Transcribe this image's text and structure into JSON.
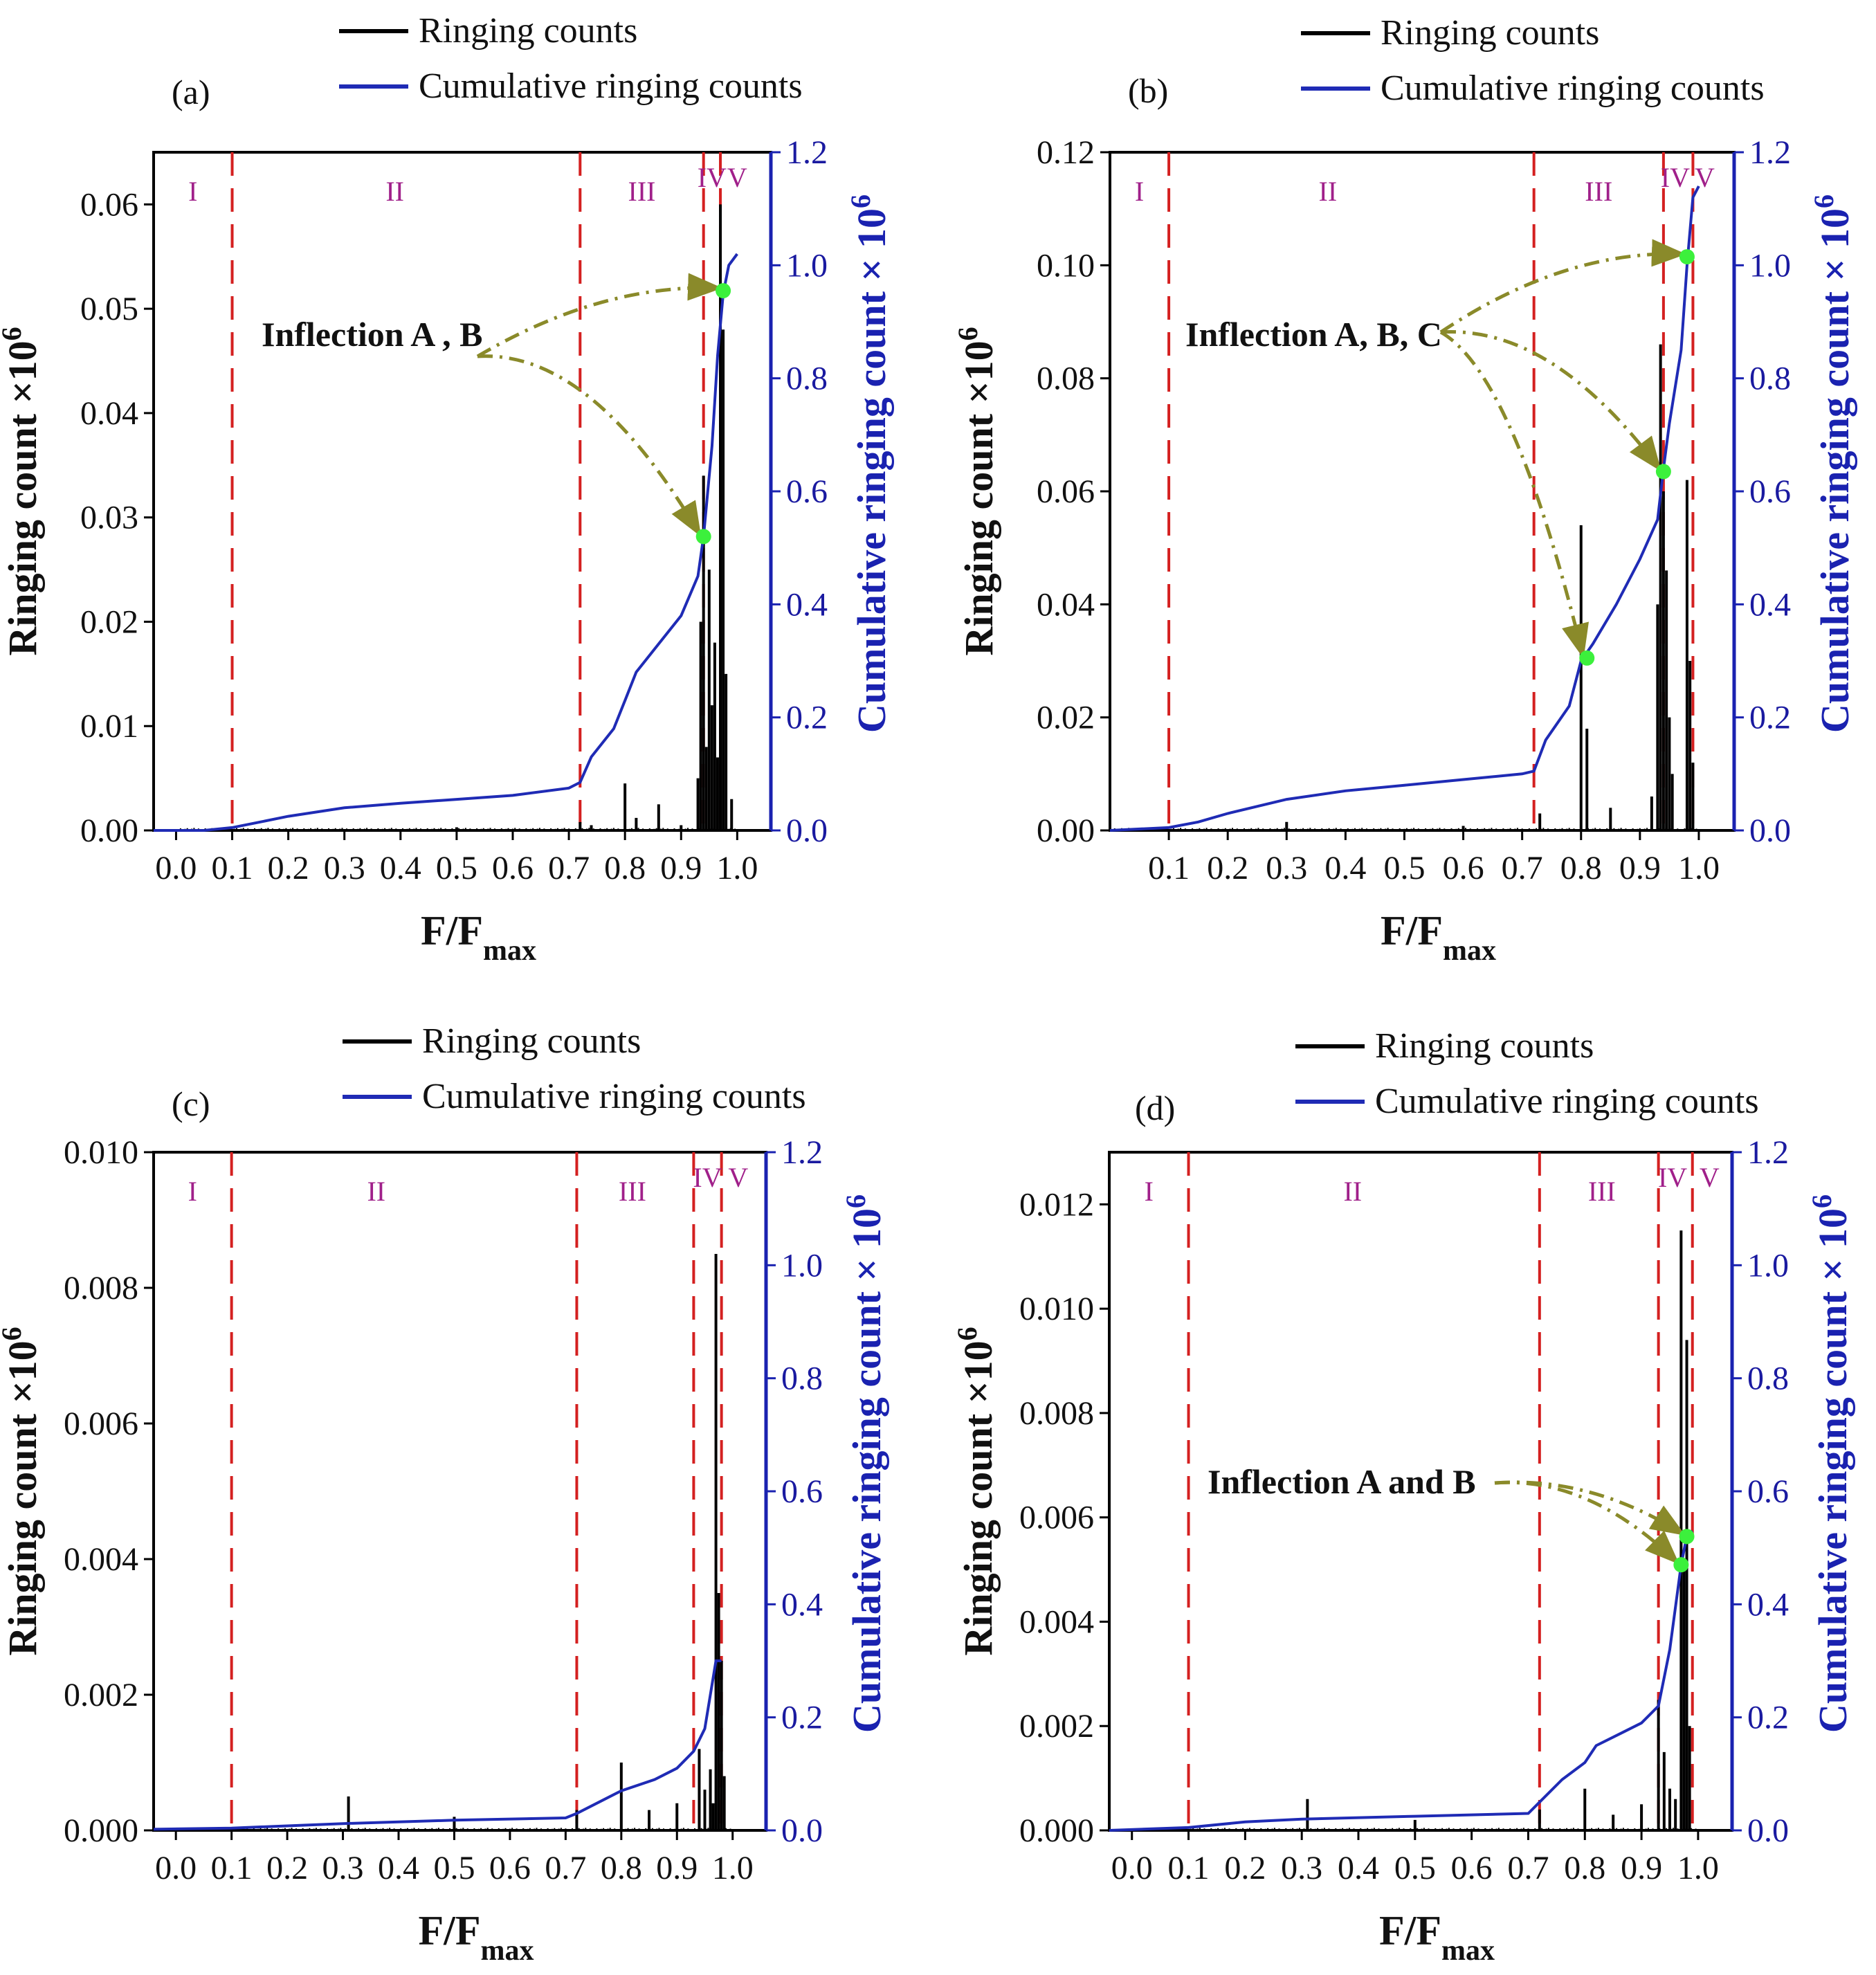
{
  "figure": {
    "legend": {
      "ringing": "Ringing counts",
      "cumulative": "Cumulative ringing counts"
    },
    "xlabel_main": "F/F",
    "xlabel_sub": "max",
    "ylabel_left": "Ringing count ×10",
    "ylabel_left_exp": "6",
    "ylabel_right": "Cumulative ringing count × 10",
    "ylabel_right_exp": "6",
    "colors": {
      "ringing": "#000000",
      "cumulative": "#1f2bb5",
      "divider": "#d42020",
      "region": "#a0208a",
      "arrow": "#8a8a2a",
      "point": "#3cf03c"
    }
  },
  "chart_data": [
    {
      "panel": "(a)",
      "type": "line",
      "x_range": [
        -0.04,
        1.06
      ],
      "x_ticks": [
        "0.0",
        "0.1",
        "0.2",
        "0.3",
        "0.4",
        "0.5",
        "0.6",
        "0.7",
        "0.8",
        "0.9",
        "1.0"
      ],
      "y_left_range": [
        0,
        0.065
      ],
      "y_left_ticks": [
        "0.00",
        "0.01",
        "0.02",
        "0.03",
        "0.04",
        "0.05",
        "0.06"
      ],
      "y_right_range": [
        0,
        1.2
      ],
      "y_right_ticks": [
        "0.0",
        "0.2",
        "0.4",
        "0.6",
        "0.8",
        "1.0",
        "1.2"
      ],
      "region_boundaries": [
        0.1,
        0.72,
        0.94,
        0.97
      ],
      "regions": [
        {
          "label": "I",
          "x": 0.03
        },
        {
          "label": "II",
          "x": 0.39
        },
        {
          "label": "III",
          "x": 0.83
        },
        {
          "label": "IV",
          "x": 0.955
        },
        {
          "label": "V",
          "x": 1.0
        }
      ],
      "ringing_counts": [
        [
          0.5,
          0.0003
        ],
        [
          0.72,
          0.0008
        ],
        [
          0.74,
          0.0005
        ],
        [
          0.8,
          0.0045
        ],
        [
          0.82,
          0.0012
        ],
        [
          0.86,
          0.0025
        ],
        [
          0.9,
          0.0005
        ],
        [
          0.93,
          0.005
        ],
        [
          0.935,
          0.02
        ],
        [
          0.94,
          0.034
        ],
        [
          0.945,
          0.008
        ],
        [
          0.95,
          0.025
        ],
        [
          0.955,
          0.012
        ],
        [
          0.96,
          0.018
        ],
        [
          0.965,
          0.007
        ],
        [
          0.97,
          0.06
        ],
        [
          0.975,
          0.048
        ],
        [
          0.98,
          0.015
        ],
        [
          0.99,
          0.003
        ]
      ],
      "cumulative": [
        [
          -0.04,
          0
        ],
        [
          0.05,
          0
        ],
        [
          0.1,
          0.005
        ],
        [
          0.15,
          0.015
        ],
        [
          0.2,
          0.025
        ],
        [
          0.3,
          0.04
        ],
        [
          0.4,
          0.048
        ],
        [
          0.5,
          0.055
        ],
        [
          0.6,
          0.062
        ],
        [
          0.7,
          0.075
        ],
        [
          0.72,
          0.085
        ],
        [
          0.74,
          0.13
        ],
        [
          0.78,
          0.18
        ],
        [
          0.8,
          0.23
        ],
        [
          0.82,
          0.28
        ],
        [
          0.86,
          0.33
        ],
        [
          0.9,
          0.38
        ],
        [
          0.93,
          0.45
        ],
        [
          0.94,
          0.52
        ],
        [
          0.955,
          0.68
        ],
        [
          0.965,
          0.84
        ],
        [
          0.975,
          0.95
        ],
        [
          0.985,
          1.0
        ],
        [
          1.0,
          1.02
        ]
      ],
      "inflection_label": "Inflection A , B",
      "inflection_points": [
        [
          0.94,
          0.52
        ],
        [
          0.975,
          0.955
        ]
      ]
    },
    {
      "panel": "(b)",
      "type": "line",
      "x_range": [
        0.0,
        1.06
      ],
      "x_ticks": [
        "0.1",
        "0.2",
        "0.3",
        "0.4",
        "0.5",
        "0.6",
        "0.7",
        "0.8",
        "0.9",
        "1.0"
      ],
      "y_left_range": [
        0,
        0.12
      ],
      "y_left_ticks": [
        "0.00",
        "0.02",
        "0.04",
        "0.06",
        "0.08",
        "0.10",
        "0.12"
      ],
      "y_right_range": [
        0,
        1.2
      ],
      "y_right_ticks": [
        "0.0",
        "0.2",
        "0.4",
        "0.6",
        "0.8",
        "1.0",
        "1.2"
      ],
      "region_boundaries": [
        0.1,
        0.72,
        0.94,
        0.99
      ],
      "regions": [
        {
          "label": "I",
          "x": 0.05
        },
        {
          "label": "II",
          "x": 0.37
        },
        {
          "label": "III",
          "x": 0.83
        },
        {
          "label": "IV",
          "x": 0.96
        },
        {
          "label": "V",
          "x": 1.01
        }
      ],
      "ringing_counts": [
        [
          0.3,
          0.0015
        ],
        [
          0.6,
          0.0008
        ],
        [
          0.73,
          0.003
        ],
        [
          0.8,
          0.054
        ],
        [
          0.81,
          0.018
        ],
        [
          0.85,
          0.004
        ],
        [
          0.92,
          0.006
        ],
        [
          0.93,
          0.04
        ],
        [
          0.935,
          0.086
        ],
        [
          0.94,
          0.06
        ],
        [
          0.945,
          0.046
        ],
        [
          0.95,
          0.02
        ],
        [
          0.955,
          0.01
        ],
        [
          0.98,
          0.062
        ],
        [
          0.985,
          0.03
        ],
        [
          0.99,
          0.012
        ]
      ],
      "cumulative": [
        [
          0.0,
          0
        ],
        [
          0.1,
          0.005
        ],
        [
          0.15,
          0.015
        ],
        [
          0.2,
          0.03
        ],
        [
          0.3,
          0.055
        ],
        [
          0.4,
          0.07
        ],
        [
          0.5,
          0.08
        ],
        [
          0.6,
          0.09
        ],
        [
          0.7,
          0.1
        ],
        [
          0.72,
          0.105
        ],
        [
          0.74,
          0.16
        ],
        [
          0.78,
          0.22
        ],
        [
          0.8,
          0.3
        ],
        [
          0.82,
          0.33
        ],
        [
          0.86,
          0.4
        ],
        [
          0.9,
          0.48
        ],
        [
          0.93,
          0.55
        ],
        [
          0.94,
          0.64
        ],
        [
          0.95,
          0.72
        ],
        [
          0.97,
          0.85
        ],
        [
          0.98,
          1.0
        ],
        [
          0.99,
          1.12
        ],
        [
          1.0,
          1.14
        ]
      ],
      "inflection_label": "Inflection A, B, C",
      "inflection_points": [
        [
          0.81,
          0.305
        ],
        [
          0.94,
          0.635
        ],
        [
          0.98,
          1.015
        ]
      ]
    },
    {
      "panel": "(c)",
      "type": "line",
      "x_range": [
        -0.04,
        1.06
      ],
      "x_ticks": [
        "0.0",
        "0.1",
        "0.2",
        "0.3",
        "0.4",
        "0.5",
        "0.6",
        "0.7",
        "0.8",
        "0.9",
        "1.0"
      ],
      "y_left_range": [
        0,
        0.01
      ],
      "y_left_ticks": [
        "0.000",
        "0.002",
        "0.004",
        "0.006",
        "0.008",
        "0.010"
      ],
      "y_right_range": [
        0,
        1.2
      ],
      "y_right_ticks": [
        "0.0",
        "0.2",
        "0.4",
        "0.6",
        "0.8",
        "1.0",
        "1.2"
      ],
      "region_boundaries": [
        0.1,
        0.72,
        0.93,
        0.98
      ],
      "regions": [
        {
          "label": "I",
          "x": 0.03
        },
        {
          "label": "II",
          "x": 0.36
        },
        {
          "label": "III",
          "x": 0.82
        },
        {
          "label": "IV",
          "x": 0.955
        },
        {
          "label": "V",
          "x": 1.01
        }
      ],
      "ringing_counts": [
        [
          0.31,
          0.0005
        ],
        [
          0.5,
          0.0002
        ],
        [
          0.72,
          0.0003
        ],
        [
          0.8,
          0.001
        ],
        [
          0.85,
          0.0003
        ],
        [
          0.9,
          0.0004
        ],
        [
          0.94,
          0.0012
        ],
        [
          0.95,
          0.0006
        ],
        [
          0.96,
          0.0009
        ],
        [
          0.965,
          0.0004
        ],
        [
          0.97,
          0.0085
        ],
        [
          0.975,
          0.0035
        ],
        [
          0.98,
          0.0025
        ],
        [
          0.985,
          0.0008
        ]
      ],
      "cumulative": [
        [
          -0.04,
          0.002
        ],
        [
          0.1,
          0.004
        ],
        [
          0.3,
          0.012
        ],
        [
          0.5,
          0.018
        ],
        [
          0.7,
          0.022
        ],
        [
          0.72,
          0.03
        ],
        [
          0.76,
          0.05
        ],
        [
          0.8,
          0.07
        ],
        [
          0.86,
          0.09
        ],
        [
          0.9,
          0.11
        ],
        [
          0.93,
          0.14
        ],
        [
          0.95,
          0.18
        ],
        [
          0.97,
          0.3
        ],
        [
          0.98,
          0.3
        ]
      ],
      "inflection_label": "",
      "inflection_points": []
    },
    {
      "panel": "(d)",
      "type": "line",
      "x_range": [
        -0.04,
        1.06
      ],
      "x_ticks": [
        "0.0",
        "0.1",
        "0.2",
        "0.3",
        "0.4",
        "0.5",
        "0.6",
        "0.7",
        "0.8",
        "0.9",
        "1.0"
      ],
      "y_left_range": [
        0,
        0.013
      ],
      "y_left_ticks": [
        "0.000",
        "0.002",
        "0.004",
        "0.006",
        "0.008",
        "0.010",
        "0.012"
      ],
      "y_right_range": [
        0,
        1.2
      ],
      "y_right_ticks": [
        "0.0",
        "0.2",
        "0.4",
        "0.6",
        "0.8",
        "1.0",
        "1.2"
      ],
      "region_boundaries": [
        0.1,
        0.72,
        0.93,
        0.99
      ],
      "regions": [
        {
          "label": "I",
          "x": 0.03
        },
        {
          "label": "II",
          "x": 0.39
        },
        {
          "label": "III",
          "x": 0.83
        },
        {
          "label": "IV",
          "x": 0.955
        },
        {
          "label": "V",
          "x": 1.02
        }
      ],
      "ringing_counts": [
        [
          0.31,
          0.0006
        ],
        [
          0.5,
          0.0002
        ],
        [
          0.72,
          0.0004
        ],
        [
          0.8,
          0.0008
        ],
        [
          0.85,
          0.0003
        ],
        [
          0.9,
          0.0005
        ],
        [
          0.93,
          0.0025
        ],
        [
          0.94,
          0.0015
        ],
        [
          0.95,
          0.0008
        ],
        [
          0.96,
          0.0006
        ],
        [
          0.97,
          0.0115
        ],
        [
          0.975,
          0.005
        ],
        [
          0.98,
          0.0094
        ],
        [
          0.985,
          0.002
        ]
      ],
      "cumulative": [
        [
          -0.04,
          0.0
        ],
        [
          0.1,
          0.005
        ],
        [
          0.2,
          0.015
        ],
        [
          0.3,
          0.02
        ],
        [
          0.5,
          0.025
        ],
        [
          0.7,
          0.03
        ],
        [
          0.72,
          0.05
        ],
        [
          0.76,
          0.09
        ],
        [
          0.8,
          0.12
        ],
        [
          0.82,
          0.15
        ],
        [
          0.86,
          0.17
        ],
        [
          0.9,
          0.19
        ],
        [
          0.93,
          0.22
        ],
        [
          0.95,
          0.32
        ],
        [
          0.97,
          0.47
        ],
        [
          0.98,
          0.52
        ],
        [
          0.99,
          0.53
        ]
      ],
      "inflection_label": "Inflection A and B",
      "inflection_points": [
        [
          0.97,
          0.47
        ],
        [
          0.98,
          0.52
        ]
      ]
    }
  ]
}
